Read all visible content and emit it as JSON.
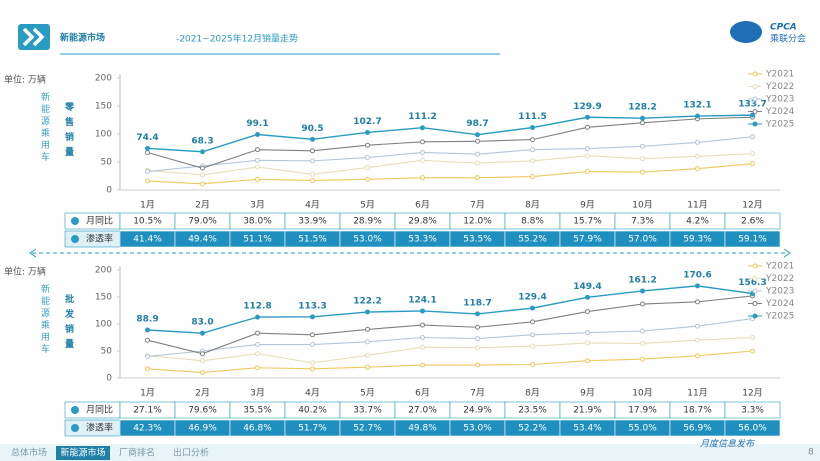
{
  "header": {
    "title_main": "新能源市场",
    "title_rest": "-2021~2025年12月销量走势",
    "logo": "CPCA",
    "logo_sub": "乘联分会",
    "page": "8"
  },
  "footer": {
    "tabs": [
      "总体市场",
      "新能源市场",
      "厂商排名",
      "出口分析"
    ],
    "note": "月度信息发布"
  },
  "chart_data": [
    {
      "type": "line",
      "unit": "单位: 万辆",
      "subject": "新能源乘用车",
      "title": "零售销量",
      "categories": [
        "1月",
        "2月",
        "3月",
        "4月",
        "5月",
        "6月",
        "7月",
        "8月",
        "9月",
        "10月",
        "11月",
        "12月"
      ],
      "ylim": [
        0,
        200
      ],
      "yticks": [
        0,
        50,
        100,
        150,
        200
      ],
      "grid": false,
      "legend": "upper right",
      "series": [
        {
          "name": "Y2021",
          "color": "#f2c75c",
          "values": [
            16,
            11,
            19,
            17,
            19,
            22,
            22,
            24,
            33,
            32,
            38,
            47
          ]
        },
        {
          "name": "Y2022",
          "color": "#e6ddb8",
          "values": [
            35,
            27,
            41,
            28,
            40,
            53,
            48,
            52,
            61,
            56,
            60,
            65
          ]
        },
        {
          "name": "Y2023",
          "color": "#b3c6db",
          "values": [
            33,
            43,
            53,
            52,
            58,
            67,
            64,
            72,
            74,
            78,
            85,
            95
          ]
        },
        {
          "name": "Y2024",
          "color": "#808080",
          "values": [
            67,
            39,
            72,
            70,
            80,
            86,
            87,
            90,
            112,
            120,
            127,
            130
          ]
        },
        {
          "name": "Y2025",
          "color": "#2a9cc2",
          "values": [
            74.4,
            68.3,
            99.1,
            90.5,
            102.7,
            111.2,
            98.7,
            111.5,
            129.9,
            128.2,
            132.1,
            133.7
          ],
          "value_labels": [
            "74.4",
            "68.3",
            "99.1",
            "90.5",
            "102.7",
            "111.2",
            "98.7",
            "111.5",
            "129.9",
            "128.2",
            "132.1",
            "133.7"
          ]
        }
      ],
      "table": {
        "rows": [
          {
            "label": "月同比",
            "values": [
              "10.5%",
              "79.0%",
              "38.0%",
              "33.9%",
              "28.9%",
              "29.8%",
              "12.0%",
              "8.8%",
              "15.7%",
              "7.3%",
              "4.2%",
              "2.6%"
            ]
          },
          {
            "label": "渗透率",
            "values": [
              "41.4%",
              "49.4%",
              "51.1%",
              "51.5%",
              "53.0%",
              "53.3%",
              "53.5%",
              "55.2%",
              "57.9%",
              "57.0%",
              "59.3%",
              "59.1%"
            ]
          }
        ]
      }
    },
    {
      "type": "line",
      "unit": "单位: 万辆",
      "subject": "新能源乘用车",
      "title": "批发销量",
      "categories": [
        "1月",
        "2月",
        "3月",
        "4月",
        "5月",
        "6月",
        "7月",
        "8月",
        "9月",
        "10月",
        "11月",
        "12月"
      ],
      "ylim": [
        0,
        200
      ],
      "yticks": [
        0,
        50,
        100,
        150,
        200
      ],
      "grid": false,
      "legend": "upper right",
      "series": [
        {
          "name": "Y2021",
          "color": "#f2c75c",
          "values": [
            17,
            10,
            19,
            17,
            20,
            24,
            24,
            25,
            32,
            35,
            41,
            50
          ]
        },
        {
          "name": "Y2022",
          "color": "#e6ddb8",
          "values": [
            41,
            32,
            45,
            28,
            42,
            57,
            56,
            59,
            65,
            64,
            70,
            75
          ]
        },
        {
          "name": "Y2023",
          "color": "#b3c6db",
          "values": [
            40,
            50,
            62,
            62,
            67,
            75,
            73,
            80,
            84,
            87,
            96,
            110
          ]
        },
        {
          "name": "Y2024",
          "color": "#808080",
          "values": [
            70,
            45,
            83,
            80,
            90,
            98,
            94,
            104,
            123,
            137,
            141,
            152
          ]
        },
        {
          "name": "Y2025",
          "color": "#2a9cc2",
          "values": [
            88.9,
            83.0,
            112.8,
            113.3,
            122.2,
            124.1,
            118.7,
            129.4,
            149.4,
            161.2,
            170.6,
            156.3
          ],
          "value_labels": [
            "88.9",
            "83.0",
            "112.8",
            "113.3",
            "122.2",
            "124.1",
            "118.7",
            "129.4",
            "149.4",
            "161.2",
            "170.6",
            "156.3"
          ]
        }
      ],
      "table": {
        "rows": [
          {
            "label": "月同比",
            "values": [
              "27.1%",
              "79.6%",
              "35.5%",
              "40.2%",
              "33.7%",
              "27.0%",
              "24.9%",
              "23.5%",
              "21.9%",
              "17.9%",
              "18.7%",
              "3.3%"
            ]
          },
          {
            "label": "渗透率",
            "values": [
              "42.3%",
              "46.9%",
              "46.8%",
              "51.7%",
              "52.7%",
              "49.8%",
              "53.0%",
              "52.2%",
              "53.4%",
              "55.0%",
              "56.9%",
              "56.0%"
            ]
          }
        ]
      }
    }
  ]
}
